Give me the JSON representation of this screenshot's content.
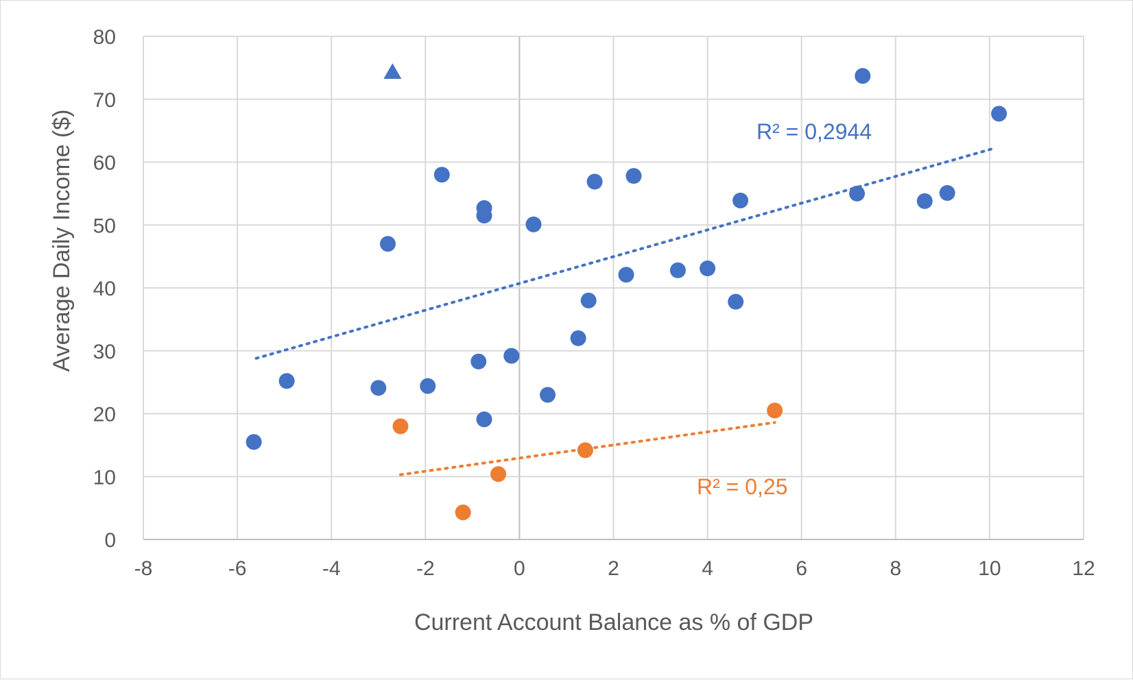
{
  "chart_data": {
    "type": "scatter",
    "title": "",
    "xlabel": "Current Account Balance as % of GDP",
    "ylabel": "Average Daily Income ($)",
    "xlim": [
      -8,
      12
    ],
    "ylim": [
      0,
      80
    ],
    "x_ticks": [
      -8,
      -6,
      -4,
      -2,
      0,
      2,
      4,
      6,
      8,
      10,
      12
    ],
    "y_ticks": [
      0,
      10,
      20,
      30,
      40,
      50,
      60,
      70,
      80
    ],
    "x_tick_labels": [
      "-8",
      "-6",
      "-4",
      "-2",
      "0",
      "2",
      "4",
      "6",
      "8",
      "10",
      "12"
    ],
    "y_tick_labels": [
      "0",
      "10",
      "20",
      "30",
      "40",
      "50",
      "60",
      "70",
      "80"
    ],
    "grid": true,
    "legend": "none",
    "series": [
      {
        "color": "#4472C4",
        "marker": "circle",
        "points": [
          [
            -5.65,
            15.5
          ],
          [
            -4.95,
            25.2
          ],
          [
            -3.0,
            24.1
          ],
          [
            -2.8,
            47.0
          ],
          [
            -1.95,
            24.4
          ],
          [
            -1.65,
            58.0
          ],
          [
            -0.87,
            28.3
          ],
          [
            -0.75,
            52.7
          ],
          [
            -0.75,
            51.5
          ],
          [
            -0.75,
            19.1
          ],
          [
            -0.17,
            29.2
          ],
          [
            0.3,
            50.1
          ],
          [
            0.6,
            23.0
          ],
          [
            1.25,
            32.0
          ],
          [
            1.47,
            38.0
          ],
          [
            1.6,
            56.9
          ],
          [
            2.27,
            42.1
          ],
          [
            2.43,
            57.8
          ],
          [
            3.37,
            42.8
          ],
          [
            4.0,
            43.1
          ],
          [
            4.6,
            37.8
          ],
          [
            4.7,
            53.9
          ],
          [
            7.18,
            55.0
          ],
          [
            7.3,
            73.7
          ],
          [
            8.62,
            53.8
          ],
          [
            9.1,
            55.1
          ],
          [
            10.2,
            67.7
          ]
        ],
        "trendline": {
          "style": "dotted",
          "x": [
            -5.6,
            10.1
          ],
          "y": [
            28.8,
            62.2
          ],
          "r2_label": "R² = 0,2944"
        }
      },
      {
        "color": "#4472C4",
        "marker": "triangle",
        "points": [
          [
            -2.7,
            74.3
          ]
        ]
      },
      {
        "color": "#ED7D31",
        "marker": "circle",
        "points": [
          [
            -2.53,
            18.0
          ],
          [
            -1.2,
            4.3
          ],
          [
            -0.45,
            10.4
          ],
          [
            1.4,
            14.2
          ],
          [
            5.43,
            20.5
          ]
        ],
        "trendline": {
          "style": "dotted",
          "x": [
            -2.53,
            5.43
          ],
          "y": [
            10.3,
            18.6
          ],
          "r2_label": "R² = 0,25"
        }
      }
    ]
  }
}
